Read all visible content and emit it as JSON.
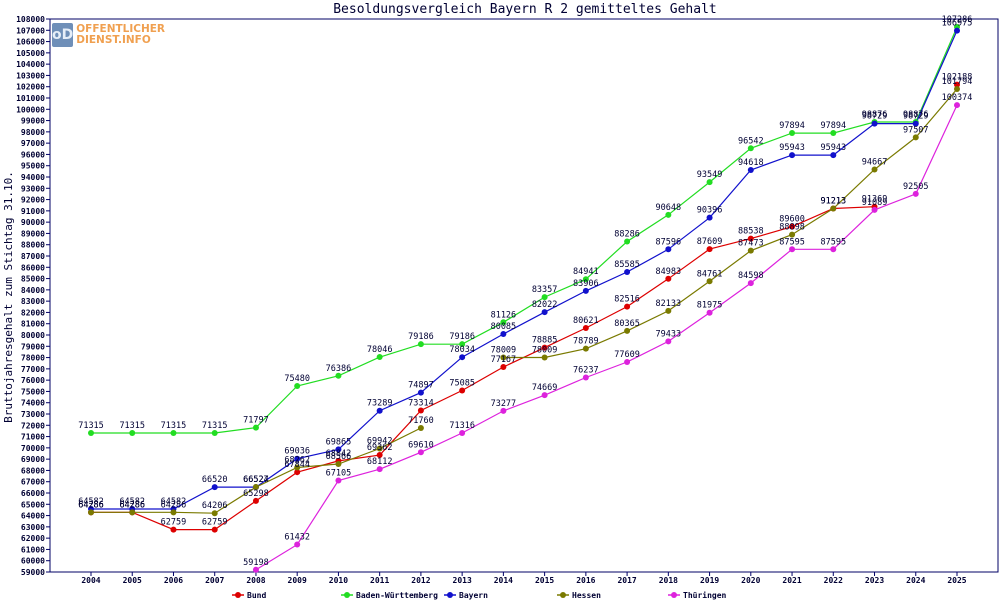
{
  "logo": {
    "line1": "OFFENTLICHER",
    "line2": "DIENST.INFO",
    "mark": "oD",
    "colors": {
      "mark": "#6f8fb8",
      "text": "#f0a050"
    }
  },
  "chart_data": {
    "type": "line",
    "title": "Besoldungsvergleich Bayern R 2 gemitteltes Gehalt",
    "xlabel": "",
    "ylabel": "Bruttojahresgehalt zum Stichtag 31.10.",
    "x": [
      2004,
      2005,
      2006,
      2007,
      2008,
      2009,
      2010,
      2011,
      2012,
      2013,
      2014,
      2015,
      2016,
      2017,
      2018,
      2019,
      2020,
      2021,
      2022,
      2023,
      2024,
      2025
    ],
    "ylim": [
      59000,
      108000
    ],
    "ytick_step": 1000,
    "grid": false,
    "legend_position": "bottom",
    "series": [
      {
        "name": "Bund",
        "color": "#dd0000",
        "values": [
          64286,
          64286,
          62759,
          62759,
          65298,
          67844,
          68842,
          69362,
          73314,
          75085,
          77167,
          78885,
          80621,
          82516,
          84983,
          87609,
          88538,
          89600,
          91213,
          91369,
          null,
          102188
        ]
      },
      {
        "name": "Baden-Württemberg",
        "color": "#22dd22",
        "values": [
          71315,
          71315,
          71315,
          71315,
          71797,
          75480,
          76386,
          78046,
          79186,
          79186,
          81126,
          83357,
          84941,
          88286,
          90648,
          93549,
          96542,
          97894,
          97894,
          98876,
          98876,
          107286
        ]
      },
      {
        "name": "Bayern",
        "color": "#1111cc",
        "values": [
          64582,
          64582,
          64582,
          66520,
          66524,
          69036,
          69865,
          73289,
          74897,
          78034,
          80085,
          82022,
          83906,
          85585,
          87596,
          90396,
          94618,
          95943,
          95943,
          98729,
          98729,
          106975
        ]
      },
      {
        "name": "Hessen",
        "color": "#7a7a00",
        "values": [
          64286,
          64286,
          64286,
          64206,
          66527,
          68262,
          68566,
          69942,
          71760,
          null,
          78009,
          78009,
          78789,
          80365,
          82133,
          84761,
          87473,
          88898,
          91213,
          94667,
          97507,
          101794
        ]
      },
      {
        "name": "Thüringen",
        "color": "#dd22dd",
        "values": [
          null,
          null,
          null,
          null,
          59198,
          61432,
          67105,
          68112,
          69610,
          71316,
          73277,
          74669,
          76237,
          77609,
          79433,
          81975,
          84598,
          87595,
          87595,
          91089,
          92505,
          100374
        ]
      }
    ]
  }
}
